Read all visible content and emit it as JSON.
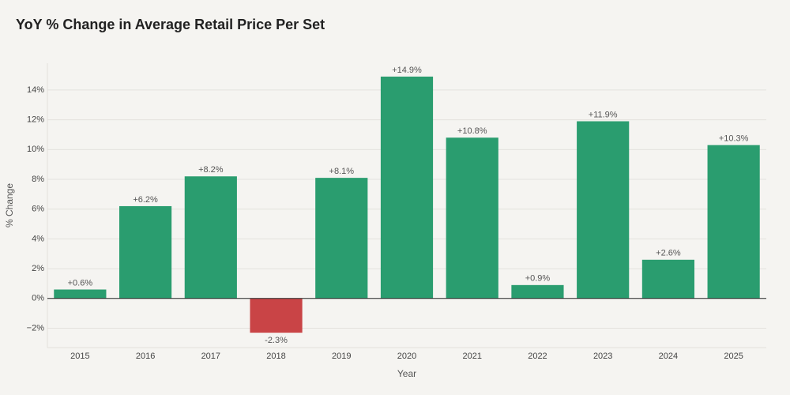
{
  "chart_data": {
    "type": "bar",
    "title": "YoY % Change in Average Retail Price Per Set",
    "x_label": "Year",
    "y_label": "% Change",
    "categories": [
      "2015",
      "2016",
      "2017",
      "2018",
      "2019",
      "2020",
      "2021",
      "2022",
      "2023",
      "2024",
      "2025"
    ],
    "values": [
      0.6,
      6.2,
      8.2,
      -2.3,
      8.1,
      14.9,
      10.8,
      0.9,
      11.9,
      2.6,
      10.3
    ],
    "value_labels": [
      "+0.6%",
      "+6.2%",
      "+8.2%",
      "-2.3%",
      "+8.1%",
      "+14.9%",
      "+10.8%",
      "+0.9%",
      "+11.9%",
      "+2.6%",
      "+10.3%"
    ],
    "colors": [
      "#2a9d6f",
      "#2a9d6f",
      "#2a9d6f",
      "#c94446",
      "#2a9d6f",
      "#2a9d6f",
      "#2a9d6f",
      "#2a9d6f",
      "#2a9d6f",
      "#2a9d6f",
      "#2a9d6f"
    ],
    "ylim": [
      -3.3,
      15.8
    ],
    "yticks": [
      {
        "value": -2,
        "label": "−2%"
      },
      {
        "value": 0,
        "label": "0%"
      },
      {
        "value": 2,
        "label": "2%"
      },
      {
        "value": 4,
        "label": "4%"
      },
      {
        "value": 6,
        "label": "6%"
      },
      {
        "value": 8,
        "label": "8%"
      },
      {
        "value": 10,
        "label": "10%"
      },
      {
        "value": 12,
        "label": "12%"
      },
      {
        "value": 14,
        "label": "14%"
      }
    ],
    "grid": true
  }
}
